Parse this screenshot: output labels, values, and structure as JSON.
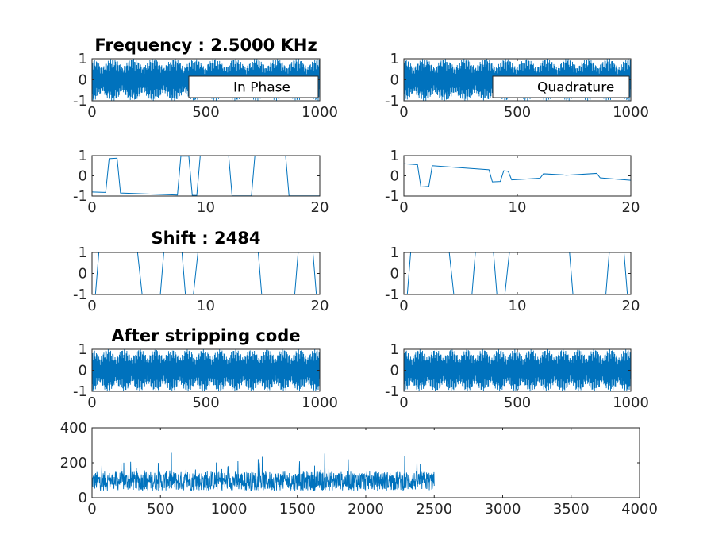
{
  "chart_data": [
    {
      "id": "p1",
      "type": "line",
      "title": "Frequency : 2.5000 KHz",
      "xlim": [
        0,
        1000
      ],
      "ylim": [
        -1,
        1
      ],
      "xticks": [
        "0",
        "500",
        "1000"
      ],
      "yticks": [
        "1",
        "0",
        "-1"
      ],
      "legend": {
        "label": "In Phase",
        "location": "bottom-right"
      },
      "series": [
        {
          "signal": "oscillating carrier with envelope",
          "amplitude": 1,
          "points": 1000
        }
      ]
    },
    {
      "id": "p2",
      "type": "line",
      "title": "",
      "xlim": [
        0,
        1000
      ],
      "ylim": [
        -1,
        1
      ],
      "xticks": [
        "0",
        "500",
        "1000"
      ],
      "yticks": [
        "1",
        "0",
        "-1"
      ],
      "legend": {
        "label": "Quadrature",
        "location": "bottom-right"
      },
      "series": [
        {
          "signal": "oscillating carrier with envelope",
          "amplitude": 1,
          "points": 1000
        }
      ]
    },
    {
      "id": "p3",
      "type": "line",
      "title": "",
      "xlim": [
        0,
        20
      ],
      "ylim": [
        -1,
        1
      ],
      "xticks": [
        "0",
        "10",
        "20"
      ],
      "yticks": [
        "1",
        "0",
        "-1"
      ],
      "series": [
        {
          "x": [
            0,
            1.2,
            1.5,
            2.2,
            2.5,
            7.5,
            7.8,
            8.5,
            8.8,
            9.2,
            9.5,
            12,
            12.3,
            14,
            14.3,
            17,
            17.3,
            20
          ],
          "y": [
            -0.8,
            -0.82,
            0.85,
            0.87,
            -0.85,
            -0.95,
            0.97,
            0.97,
            -0.96,
            -0.97,
            0.98,
            0.99,
            -0.99,
            -0.99,
            1,
            1,
            -0.99,
            -0.99
          ]
        }
      ]
    },
    {
      "id": "p4",
      "type": "line",
      "title": "",
      "xlim": [
        0,
        20
      ],
      "ylim": [
        -1,
        1
      ],
      "xticks": [
        "0",
        "10",
        "20"
      ],
      "yticks": [
        "1",
        "0",
        "-1"
      ],
      "series": [
        {
          "x": [
            0,
            1.2,
            1.5,
            2.2,
            2.5,
            7.5,
            7.8,
            8.5,
            8.8,
            9.2,
            9.5,
            12,
            12.3,
            14,
            14.3,
            17,
            17.3,
            20
          ],
          "y": [
            0.6,
            0.55,
            -0.55,
            -0.52,
            0.5,
            0.3,
            -0.3,
            -0.28,
            0.25,
            0.22,
            -0.2,
            -0.12,
            0.1,
            0.05,
            0.03,
            0.12,
            -0.1,
            -0.22
          ]
        }
      ]
    },
    {
      "id": "p5",
      "type": "line",
      "title": "Shift : 2484",
      "xlim": [
        0,
        20
      ],
      "ylim": [
        -1,
        1
      ],
      "xticks": [
        "0",
        "10",
        "20"
      ],
      "yticks": [
        "1",
        "0",
        "-1"
      ],
      "series": [
        {
          "x": [
            0,
            0.3,
            0.6,
            4,
            4.4,
            6,
            6.3,
            7.9,
            8.2,
            8.9,
            9.3,
            14.6,
            14.9,
            17.8,
            18.1,
            19.4,
            19.7,
            20
          ],
          "y": [
            -1,
            -1,
            1,
            1,
            -1,
            -1,
            1,
            1,
            -1,
            -1,
            1,
            1,
            -1,
            -1,
            1,
            1,
            -1,
            -1
          ]
        }
      ]
    },
    {
      "id": "p6",
      "type": "line",
      "title": "",
      "xlim": [
        0,
        20
      ],
      "ylim": [
        -1,
        1
      ],
      "xticks": [
        "0",
        "10",
        "20"
      ],
      "yticks": [
        "1",
        "0",
        "-1"
      ],
      "series": [
        {
          "x": [
            0,
            0.3,
            0.6,
            4,
            4.4,
            6,
            6.3,
            7.9,
            8.2,
            8.9,
            9.3,
            14.6,
            14.9,
            17.8,
            18.1,
            19.4,
            19.7,
            20
          ],
          "y": [
            -1,
            -1,
            1,
            1,
            -1,
            -1,
            1,
            1,
            -1,
            -1,
            1,
            1,
            -1,
            -1,
            1,
            1,
            -1,
            -1
          ]
        }
      ]
    },
    {
      "id": "p7",
      "type": "line",
      "title": "After stripping code",
      "xlim": [
        0,
        1000
      ],
      "ylim": [
        -1,
        1
      ],
      "xticks": [
        "0",
        "500",
        "1000"
      ],
      "yticks": [
        "1",
        "0",
        "-1"
      ],
      "series": [
        {
          "signal": "oscillating carrier with regular envelope",
          "amplitude": 1,
          "points": 1000
        }
      ]
    },
    {
      "id": "p8",
      "type": "line",
      "title": "",
      "xlim": [
        0,
        1000
      ],
      "ylim": [
        -1,
        1
      ],
      "xticks": [
        "0",
        "500",
        "1000"
      ],
      "yticks": [
        "1",
        "0",
        "-1"
      ],
      "series": [
        {
          "signal": "oscillating carrier with regular envelope",
          "amplitude": 1,
          "points": 1000
        }
      ]
    },
    {
      "id": "p9",
      "type": "line",
      "title": "",
      "xlim": [
        0,
        4000
      ],
      "ylim": [
        0,
        400
      ],
      "xticks": [
        "0",
        "500",
        "1000",
        "1500",
        "2000",
        "2500",
        "3000",
        "3500",
        "4000"
      ],
      "yticks": [
        "400",
        "200",
        "0"
      ],
      "series": [
        {
          "signal": "noisy correlation magnitude",
          "x_range": [
            0,
            2500
          ],
          "typical_range": [
            20,
            180
          ],
          "peak": 300
        }
      ]
    }
  ],
  "colors": {
    "line": "#0072bd",
    "axis": "#262626",
    "background": "#ffffff"
  }
}
